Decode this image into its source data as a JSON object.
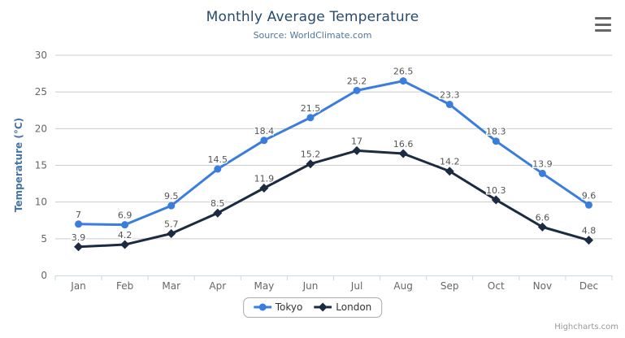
{
  "header": {
    "title": "Monthly Average Temperature",
    "subtitle": "Source: WorldClimate.com"
  },
  "menu": {
    "icon": "hamburger-icon",
    "tooltip": "Chart context menu"
  },
  "credits": {
    "label": "Highcharts.com"
  },
  "colors": {
    "tokyo": "#3b7ddd",
    "london": "#1a2b42",
    "grid_line": "#cccccc",
    "axis_line": "#ccd6eb",
    "title_text": "#274b6d",
    "subtitle_text": "#4d759e",
    "axis_title_text": "#4572a7",
    "axis_label_text": "#666666",
    "data_label_text": "#555555",
    "legend_text": "#333333",
    "credits_text": "#999999",
    "menu_icon": "#666666"
  },
  "chart_data": {
    "type": "line",
    "title": "Monthly Average Temperature",
    "subtitle": "Source: WorldClimate.com",
    "xlabel": "",
    "ylabel": "Temperature (°C)",
    "categories": [
      "Jan",
      "Feb",
      "Mar",
      "Apr",
      "May",
      "Jun",
      "Jul",
      "Aug",
      "Sep",
      "Oct",
      "Nov",
      "Dec"
    ],
    "series": [
      {
        "name": "Tokyo",
        "color": "#3b7ddd",
        "marker": "circle",
        "values": [
          7,
          6.9,
          9.5,
          14.5,
          18.4,
          21.5,
          25.2,
          26.5,
          23.3,
          18.3,
          13.9,
          9.6
        ]
      },
      {
        "name": "London",
        "color": "#1a2b42",
        "marker": "diamond",
        "values": [
          3.9,
          4.2,
          5.7,
          8.5,
          11.9,
          15.2,
          17,
          16.6,
          14.2,
          10.3,
          6.6,
          4.8
        ]
      }
    ],
    "ylim": [
      0,
      30
    ],
    "ytick_step": 5,
    "grid": true,
    "data_labels": true,
    "legend_position": "bottom-center"
  },
  "legend": {
    "items": [
      {
        "label": "Tokyo"
      },
      {
        "label": "London"
      }
    ]
  }
}
